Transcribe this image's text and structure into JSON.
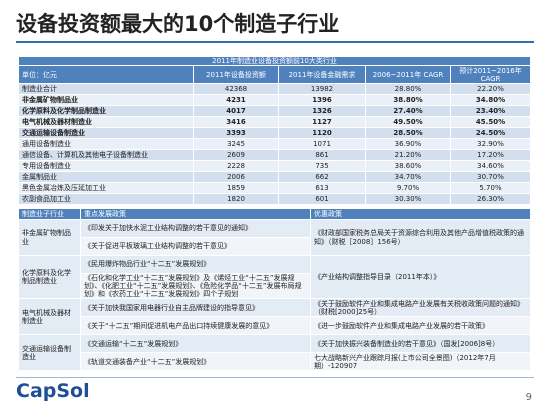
{
  "header": {
    "title": "设备投资额最大的10个制造子行业"
  },
  "table1": {
    "caption": "2011年制造业设备投资额前10大类行业",
    "columns": [
      "单位：亿元",
      "2011年设备投资额",
      "2011年设备金融需求",
      "2006~2011年 CAGR",
      "预计2011~2016年 CAGR"
    ],
    "rows": [
      {
        "cells": [
          "制造业合计",
          "42368",
          "13982",
          "28.80%",
          "22.20%"
        ],
        "bold": false
      },
      {
        "cells": [
          "非金属矿物制品业",
          "4231",
          "1396",
          "38.80%",
          "34.80%"
        ],
        "bold": true
      },
      {
        "cells": [
          "化学原料及化学制品制造业",
          "4017",
          "1326",
          "27.40%",
          "23.40%"
        ],
        "bold": true
      },
      {
        "cells": [
          "电气机械及器材制造业",
          "3416",
          "1127",
          "49.50%",
          "45.50%"
        ],
        "bold": true
      },
      {
        "cells": [
          "交通运输设备制造业",
          "3393",
          "1120",
          "28.50%",
          "24.50%"
        ],
        "bold": true
      },
      {
        "cells": [
          "通用设备制造业",
          "3245",
          "1071",
          "36.90%",
          "32.90%"
        ],
        "bold": false
      },
      {
        "cells": [
          "通信设备、计算机及其他电子设备制造业",
          "2609",
          "861",
          "21.20%",
          "17.20%"
        ],
        "bold": false
      },
      {
        "cells": [
          "专用设备制造业",
          "2228",
          "735",
          "38.60%",
          "34.60%"
        ],
        "bold": false
      },
      {
        "cells": [
          "金属制品业",
          "2006",
          "662",
          "34.70%",
          "30.70%"
        ],
        "bold": false
      },
      {
        "cells": [
          "黑色金属冶炼及压延加工业",
          "1859",
          "613",
          "9.70%",
          "5.70%"
        ],
        "bold": false
      },
      {
        "cells": [
          "农副食品加工业",
          "1820",
          "601",
          "30.30%",
          "26.30%"
        ],
        "bold": false
      }
    ]
  },
  "table2": {
    "columns": [
      "制造业子行业",
      "重点发展政策",
      "优惠政策"
    ],
    "rows": [
      {
        "sector": "非金属矿物制品业",
        "policies": [
          "《印发关于加快水泥工业结构调整的若干意见的通知》",
          "《关于促进平板玻璃工业结构调整的若干意见》"
        ],
        "preferential": [
          "《财政部国家税务总局关于资源综合利用及其他产品增值税政策的通知》（财税［2008］156号）"
        ]
      },
      {
        "sector": "化学原料及化学制品制造业",
        "policies": [
          "《民用爆炸物品行业“十二五”发展规划》",
          "《石化和化学工业“十二五”发展规划》及《烯烃工业“十二五”发展规划》、《化肥工业“十二五”发展规划》、《危险化学品“十二五”发展布局规划》和《农药工业“十二五”发展规划》四个子规划"
        ],
        "preferential": [
          "《产业结构调整指导目录（2011年本）》"
        ]
      },
      {
        "sector": "电气机械及器材制造业",
        "policies": [
          "《关于加快我国家用电器行业自主品牌建设的指导意见》",
          "《关于“十二五”期间促进机电产品出口持续健康发展的意见》"
        ],
        "preferential": [
          "《关于鼓励软件产业和集成电路产业发展有关税收政策问题的通知》（财税[2000]25号）",
          "《进一步鼓励软件产业和集成电路产业发展的若干政策》"
        ]
      },
      {
        "sector": "交通运输设备制造业",
        "policies": [
          "《交通运输“十二五”发展规划》",
          "《轨道交通装备产业“十二五”发展规划》"
        ],
        "preferential": [
          "《关于加快振兴装备制造业的若干意见》（国发[2006]8号）",
          "七大战略新兴产业跟踪月报(上市公司全景图)（2012年7月期）-120907"
        ]
      }
    ]
  },
  "footer": {
    "logo": "CapSol",
    "page": "9"
  }
}
